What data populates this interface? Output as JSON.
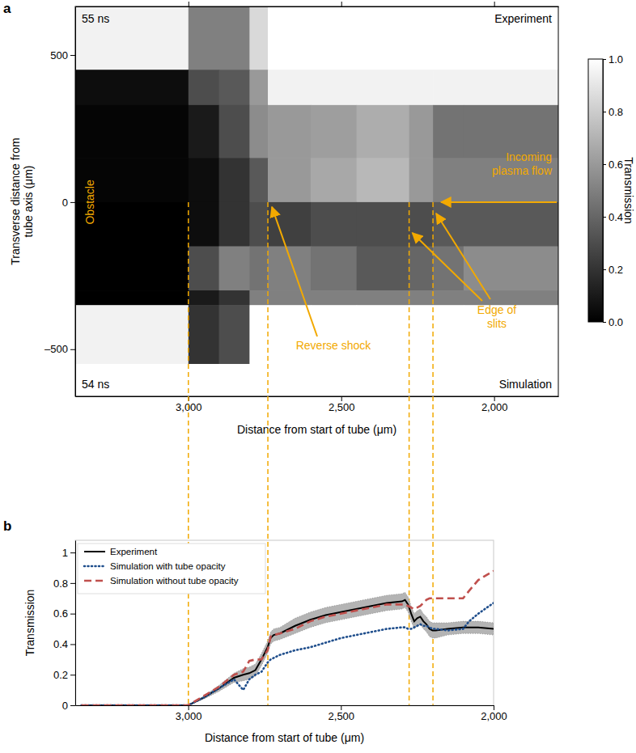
{
  "chart_data": [
    {
      "type": "heatmap",
      "panel_label": "a",
      "x_label": "Distance from start of tube (μm)",
      "y_label": [
        "Transverse distance from",
        "tube axis (μm)"
      ],
      "xlim": [
        3370,
        1790
      ],
      "ylim": [
        -660,
        665
      ],
      "xticks": [
        {
          "value": 3000,
          "label": "3,000"
        },
        {
          "value": 2500,
          "label": "2,500"
        },
        {
          "value": 2000,
          "label": "2,000"
        }
      ],
      "yticks": [
        500,
        0,
        {
          "value": -500,
          "label": "–500"
        }
      ],
      "x_edges": [
        3370,
        3000,
        2900,
        2800,
        2740,
        2600,
        2450,
        2278,
        2200,
        2100,
        1790
      ],
      "y_edges": [
        665,
        450,
        330,
        150,
        0,
        -150,
        -300,
        -350,
        -550,
        -660
      ],
      "cells": [
        [
          0.95,
          0.5,
          0.5,
          0.85,
          1,
          1,
          1,
          1,
          1,
          1
        ],
        [
          0.05,
          0.3,
          0.35,
          0.6,
          0.95,
          0.95,
          0.95,
          0.95,
          0.95,
          0.95
        ],
        [
          0.02,
          0.1,
          0.3,
          0.55,
          0.6,
          0.62,
          0.68,
          0.6,
          0.45,
          0.45
        ],
        [
          0.02,
          0.05,
          0.2,
          0.35,
          0.6,
          0.66,
          0.72,
          0.6,
          0.5,
          0.5
        ],
        [
          0,
          0.05,
          0.2,
          0.3,
          0.25,
          0.3,
          0.3,
          0.3,
          0.35,
          0.35
        ],
        [
          0,
          0.3,
          0.5,
          0.45,
          0.5,
          0.45,
          0.35,
          0.4,
          0.45,
          0.55
        ],
        [
          0,
          0.1,
          0.2,
          0.5,
          0.5,
          0.5,
          0.5,
          0.5,
          0.5,
          0.5
        ],
        [
          0.95,
          0.2,
          0.3,
          1,
          1,
          1,
          1,
          1,
          1,
          1
        ],
        [
          1,
          1,
          1,
          1,
          1,
          1,
          1,
          1,
          1,
          1
        ]
      ],
      "colorbar": {
        "title": "Transmission",
        "range": [
          0,
          1
        ],
        "ticks": [
          {
            "value": 0,
            "label": "0.0"
          },
          {
            "value": 0.2,
            "label": "0.2"
          },
          {
            "value": 0.4,
            "label": "0.4"
          },
          {
            "value": 0.6,
            "label": "0.6"
          },
          {
            "value": 0.8,
            "label": "0.8"
          },
          {
            "value": 1,
            "label": "1.0"
          }
        ]
      },
      "markers": [
        3000,
        2740,
        2278,
        2200
      ],
      "corner_labels": {
        "top_left": "55 ns",
        "top_right": "Experiment",
        "bottom_left": "54 ns",
        "bottom_right": "Simulation"
      },
      "annotations": [
        {
          "text": [
            "Obstacle"
          ]
        },
        {
          "text": [
            "Incoming",
            "plasma flow"
          ]
        },
        {
          "text": [
            "Reverse shock"
          ]
        },
        {
          "text": [
            "Edge of",
            "slits"
          ]
        }
      ]
    },
    {
      "type": "line",
      "panel_label": "b",
      "x_label": "Distance from start of tube (μm)",
      "y_label": "Transmission",
      "xlim": [
        3370,
        2000
      ],
      "ylim": [
        0,
        1.08
      ],
      "xticks": [
        {
          "value": 3000,
          "label": "3,000"
        },
        {
          "value": 2500,
          "label": "2,500"
        },
        {
          "value": 2000,
          "label": "2,000"
        }
      ],
      "yticks": [
        0,
        0.2,
        0.4,
        0.6,
        0.8,
        1
      ],
      "legend": "upper left",
      "x": [
        3350,
        3300,
        3250,
        3200,
        3150,
        3100,
        3050,
        3000,
        2950,
        2900,
        2850,
        2820,
        2800,
        2780,
        2760,
        2740,
        2730,
        2720,
        2700,
        2650,
        2600,
        2550,
        2500,
        2450,
        2400,
        2350,
        2300,
        2290,
        2280,
        2270,
        2260,
        2250,
        2240,
        2230,
        2220,
        2210,
        2200,
        2190,
        2150,
        2100,
        2080,
        2050,
        2000
      ],
      "series": [
        {
          "name": "Experiment",
          "color": "#000000",
          "line_style": "solid",
          "values": [
            0,
            0,
            0,
            0,
            0,
            0,
            0,
            0,
            0.05,
            0.11,
            0.18,
            0.2,
            0.21,
            0.23,
            0.3,
            0.38,
            0.44,
            0.46,
            0.47,
            0.52,
            0.56,
            0.59,
            0.61,
            0.63,
            0.65,
            0.67,
            0.68,
            0.69,
            0.66,
            0.6,
            0.55,
            0.57,
            0.58,
            0.55,
            0.53,
            0.5,
            0.49,
            0.49,
            0.5,
            0.51,
            0.51,
            0.51,
            0.5
          ],
          "error": [
            0,
            0,
            0,
            0,
            0,
            0,
            0,
            0,
            0.01,
            0.02,
            0.03,
            0.04,
            0.04,
            0.04,
            0.04,
            0.04,
            0.04,
            0.04,
            0.04,
            0.05,
            0.05,
            0.05,
            0.05,
            0.05,
            0.05,
            0.05,
            0.05,
            0.05,
            0.05,
            0.05,
            0.05,
            0.05,
            0.05,
            0.05,
            0.05,
            0.05,
            0.05,
            0.05,
            0.04,
            0.04,
            0.04,
            0.04,
            0.04
          ]
        },
        {
          "name": "Simulation with tube opacity",
          "color": "#1f4e8c",
          "line_style": "dotted",
          "values": [
            0,
            0,
            0,
            0,
            0,
            0,
            0,
            0,
            0.05,
            0.11,
            0.17,
            0.1,
            0.17,
            0.2,
            0.22,
            0.28,
            0.3,
            0.31,
            0.33,
            0.36,
            0.38,
            0.41,
            0.44,
            0.46,
            0.48,
            0.5,
            0.51,
            0.51,
            0.5,
            0.5,
            0.51,
            0.52,
            0.53,
            0.52,
            0.52,
            0.51,
            0.5,
            0.5,
            0.49,
            0.5,
            0.55,
            0.6,
            0.67
          ]
        },
        {
          "name": "Simulation without tube opacity",
          "color": "#c0504d",
          "line_style": "dashed",
          "values": [
            0,
            0,
            0,
            0,
            0,
            0,
            0,
            0,
            0.06,
            0.12,
            0.2,
            0.22,
            0.29,
            0.3,
            0.3,
            0.36,
            0.45,
            0.46,
            0.47,
            0.5,
            0.55,
            0.58,
            0.6,
            0.62,
            0.64,
            0.66,
            0.66,
            0.66,
            0.65,
            0.64,
            0.63,
            0.64,
            0.65,
            0.67,
            0.69,
            0.7,
            0.7,
            0.7,
            0.7,
            0.7,
            0.75,
            0.82,
            0.88
          ]
        }
      ]
    }
  ]
}
